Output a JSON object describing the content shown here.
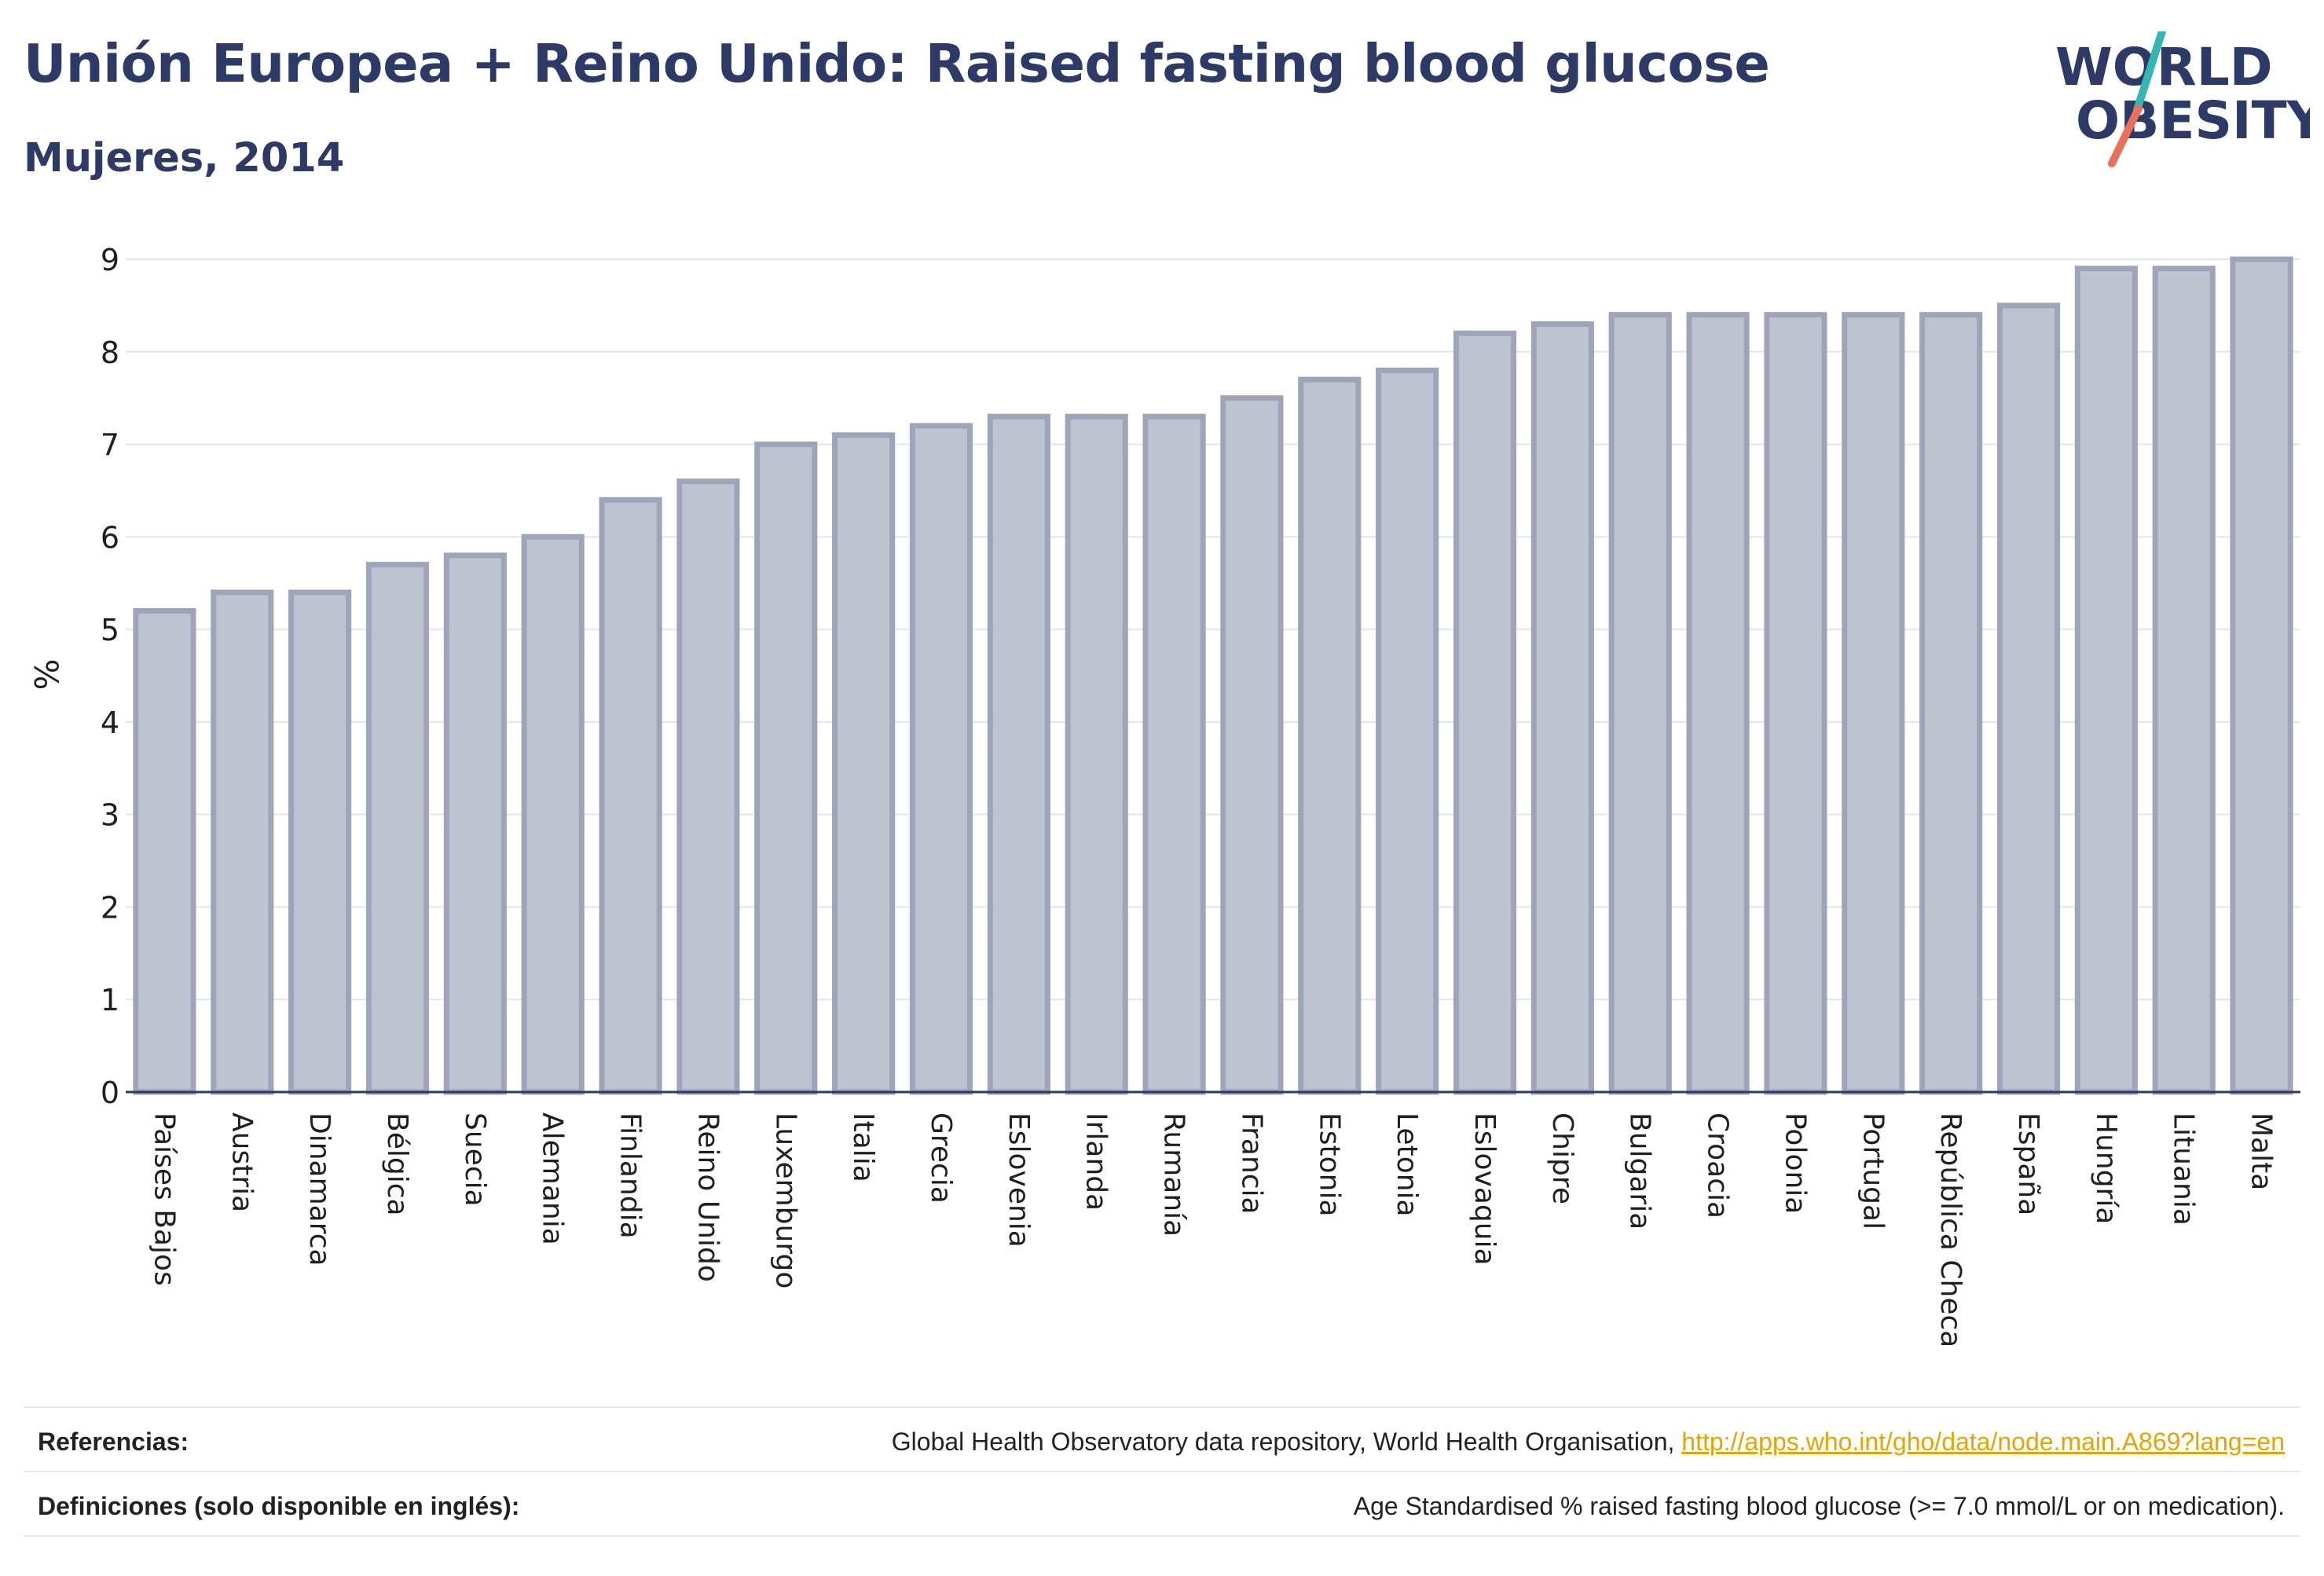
{
  "header": {
    "title": "Unión Europea + Reino Unido: Raised fasting blood glucose",
    "subtitle": "Mujeres, 2014"
  },
  "logo": {
    "line1": "WORLD",
    "line2": "OBESITY"
  },
  "colors": {
    "title": "#2b3a66",
    "bar_fill": "#bfc3d0",
    "bar_stroke": "#9ea4ba",
    "link": "#e5a400",
    "logo_teal": "#33b7b0",
    "logo_coral": "#e8705c"
  },
  "chart_data": {
    "type": "bar",
    "ylabel": "%",
    "ylim": [
      0,
      9
    ],
    "yticks": [
      0,
      1,
      2,
      3,
      4,
      5,
      6,
      7,
      8,
      9
    ],
    "grid": true,
    "categories": [
      "Países Bajos",
      "Austria",
      "Dinamarca",
      "Bélgica",
      "Suecia",
      "Alemania",
      "Finlandia",
      "Reino Unido",
      "Luxemburgo",
      "Italia",
      "Grecia",
      "Eslovenia",
      "Irlanda",
      "Rumanía",
      "Francia",
      "Estonia",
      "Letonia",
      "Eslovaquia",
      "Chipre",
      "Bulgaria",
      "Croacia",
      "Polonia",
      "Portugal",
      "República Checa",
      "España",
      "Hungría",
      "Lituania",
      "Malta"
    ],
    "values": [
      5.2,
      5.4,
      5.4,
      5.7,
      5.8,
      6.0,
      6.4,
      6.6,
      7.0,
      7.1,
      7.2,
      7.3,
      7.3,
      7.3,
      7.5,
      7.7,
      7.8,
      8.2,
      8.3,
      8.4,
      8.4,
      8.4,
      8.4,
      8.4,
      8.5,
      8.9,
      8.9,
      9.0
    ]
  },
  "footer": {
    "references_label": "Referencias:",
    "references_text": "Global Health Observatory data repository, World Health Organisation, ",
    "references_link": "http://apps.who.int/gho/data/node.main.A869?lang=en",
    "definitions_label": "Definiciones (solo disponible en inglés):",
    "definitions_text": "Age Standardised % raised fasting blood glucose (>= 7.0 mmol/L or on medication)."
  }
}
